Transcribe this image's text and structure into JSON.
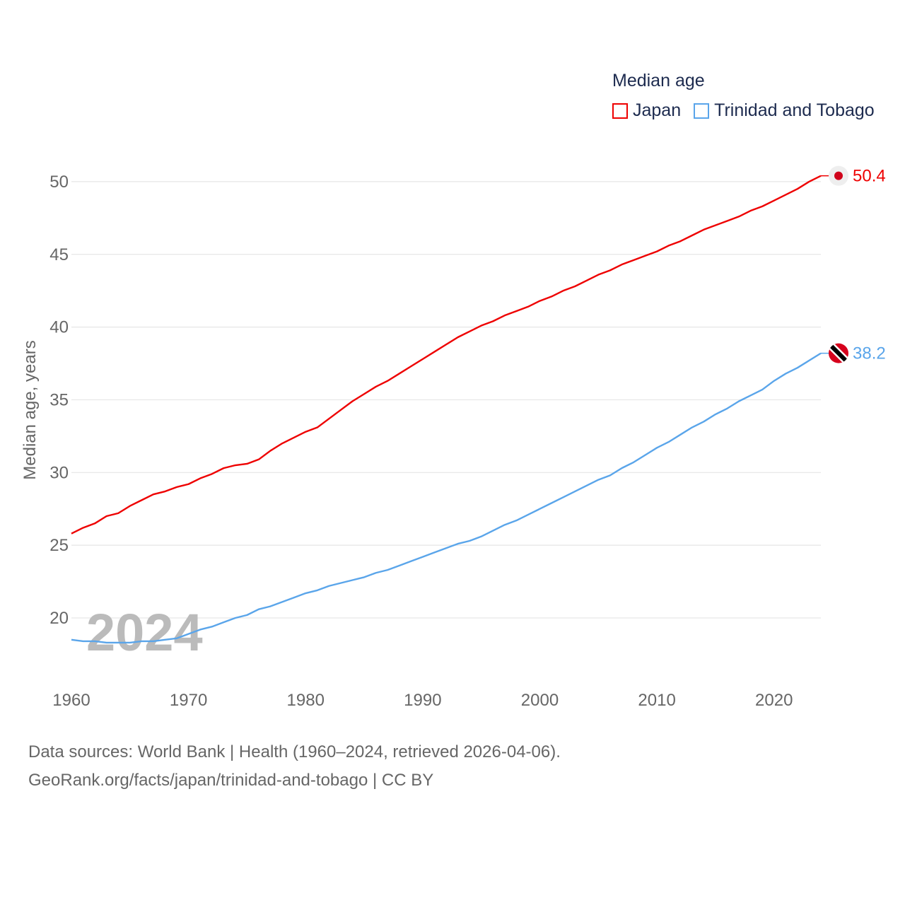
{
  "chart_data": {
    "type": "line",
    "title": "Median age",
    "ylabel": "Median age, years",
    "xlabel": "",
    "xlim": [
      1960,
      2024
    ],
    "ylim": [
      16.5,
      52
    ],
    "yticks": [
      20,
      25,
      30,
      35,
      40,
      45,
      50
    ],
    "xticks": [
      1960,
      1970,
      1980,
      1990,
      2000,
      2010,
      2020
    ],
    "grid": true,
    "legend_position": "top-right",
    "year_watermark": "2024",
    "x": [
      1960,
      1961,
      1962,
      1963,
      1964,
      1965,
      1966,
      1967,
      1968,
      1969,
      1970,
      1971,
      1972,
      1973,
      1974,
      1975,
      1976,
      1977,
      1978,
      1979,
      1980,
      1981,
      1982,
      1983,
      1984,
      1985,
      1986,
      1987,
      1988,
      1989,
      1990,
      1991,
      1992,
      1993,
      1994,
      1995,
      1996,
      1997,
      1998,
      1999,
      2000,
      2001,
      2002,
      2003,
      2004,
      2005,
      2006,
      2007,
      2008,
      2009,
      2010,
      2011,
      2012,
      2013,
      2014,
      2015,
      2016,
      2017,
      2018,
      2019,
      2020,
      2021,
      2022,
      2023,
      2024
    ],
    "series": [
      {
        "name": "Japan",
        "color": "#ee0000",
        "end_label": "50.4",
        "values": [
          25.8,
          26.2,
          26.5,
          27.0,
          27.2,
          27.7,
          28.1,
          28.5,
          28.7,
          29.0,
          29.2,
          29.6,
          29.9,
          30.3,
          30.5,
          30.6,
          30.9,
          31.5,
          32.0,
          32.4,
          32.8,
          33.1,
          33.7,
          34.3,
          34.9,
          35.4,
          35.9,
          36.3,
          36.8,
          37.3,
          37.8,
          38.3,
          38.8,
          39.3,
          39.7,
          40.1,
          40.4,
          40.8,
          41.1,
          41.4,
          41.8,
          42.1,
          42.5,
          42.8,
          43.2,
          43.6,
          43.9,
          44.3,
          44.6,
          44.9,
          45.2,
          45.6,
          45.9,
          46.3,
          46.7,
          47.0,
          47.3,
          47.6,
          48.0,
          48.3,
          48.7,
          49.1,
          49.5,
          50.0,
          50.4
        ]
      },
      {
        "name": "Trinidad and Tobago",
        "color": "#5aa5ea",
        "end_label": "38.2",
        "values": [
          18.5,
          18.4,
          18.4,
          18.3,
          18.3,
          18.3,
          18.4,
          18.4,
          18.5,
          18.6,
          18.9,
          19.2,
          19.4,
          19.7,
          20.0,
          20.2,
          20.6,
          20.8,
          21.1,
          21.4,
          21.7,
          21.9,
          22.2,
          22.4,
          22.6,
          22.8,
          23.1,
          23.3,
          23.6,
          23.9,
          24.2,
          24.5,
          24.8,
          25.1,
          25.3,
          25.6,
          26.0,
          26.4,
          26.7,
          27.1,
          27.5,
          27.9,
          28.3,
          28.7,
          29.1,
          29.5,
          29.8,
          30.3,
          30.7,
          31.2,
          31.7,
          32.1,
          32.6,
          33.1,
          33.5,
          34.0,
          34.4,
          34.9,
          35.3,
          35.7,
          36.3,
          36.8,
          37.2,
          37.7,
          38.2
        ]
      }
    ]
  },
  "source": {
    "line1": "Data sources: World Bank | Health (1960–2024, retrieved 2026-04-06).",
    "line2": "GeoRank.org/facts/japan/trinidad-and-tobago | CC BY"
  }
}
